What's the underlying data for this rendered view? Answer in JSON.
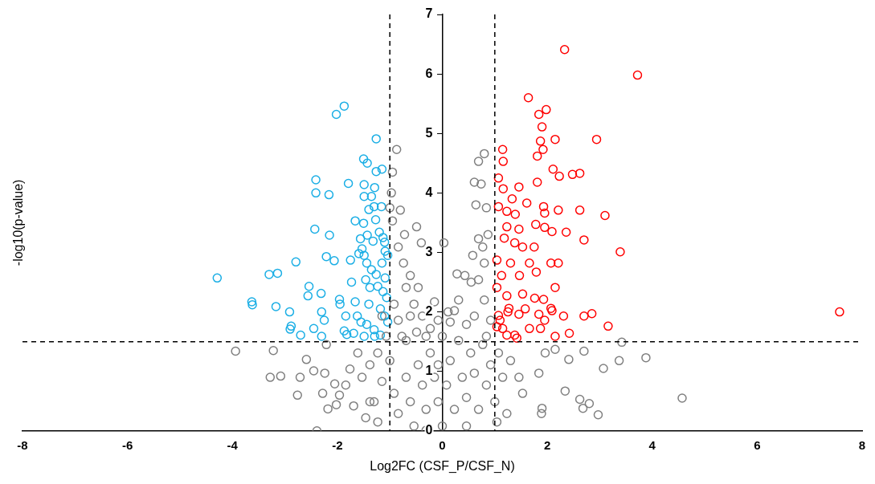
{
  "chart_data": {
    "type": "scatter",
    "xlabel": "Log2FC (CSF_P/CSF_N)",
    "ylabel": "-log10(p-value)",
    "xlim": [
      -8,
      8
    ],
    "ylim": [
      0,
      7
    ],
    "xticks": [
      -8,
      -6,
      -4,
      -2,
      0,
      2,
      4,
      6,
      8
    ],
    "yticks": [
      0,
      1,
      2,
      3,
      4,
      5,
      6,
      7
    ],
    "marker": "circle",
    "legend": false,
    "ref_lines": [
      {
        "axis": "x",
        "value": -1,
        "line_style": "dashed",
        "color": "#000000"
      },
      {
        "axis": "x",
        "value": 1,
        "line_style": "dashed",
        "color": "#000000"
      },
      {
        "axis": "y",
        "value": 1.5,
        "line_style": "dashed",
        "color": "#000000"
      }
    ],
    "series": [
      {
        "color": "#7f7f7f",
        "x": [
          -3.94,
          -3.22,
          -3.28,
          -3.08,
          -2.71,
          -2.76,
          -2.59,
          -2.39,
          -2.28,
          -2.05,
          -2.18,
          -1.96,
          -2.45,
          -2.24,
          -2.21,
          -2.02,
          4.57,
          3.88,
          3.42,
          3.37,
          3.07,
          2.7,
          2.97,
          2.8,
          2.62,
          2.68,
          2.34,
          1.9,
          1.89,
          2.41,
          1.96,
          2.15,
          1.84,
          1.53,
          1.46,
          1.23,
          1.3,
          -0.87,
          -0.95,
          -0.97,
          -1.0,
          -0.95,
          -0.49,
          -0.4,
          0.03,
          0.8,
          0.69,
          0.61,
          0.74,
          0.64,
          0.84,
          0.87,
          0.69,
          0.58,
          0.8,
          0.43,
          0.55,
          0.28,
          0.31,
          0.23,
          -0.15,
          0.15,
          0.46,
          0.61,
          -0.74,
          -0.61,
          -0.84,
          -0.69,
          -0.54,
          -0.38,
          -0.23,
          -0.84,
          -0.69,
          -1.23,
          -1.38,
          -1.53,
          -1.61,
          -1.76,
          -1.84,
          -1.69,
          -1.46,
          -1.3,
          -1.15,
          -1.0,
          -0.92,
          -0.84,
          -0.69,
          -0.61,
          -0.54,
          -0.46,
          -0.38,
          -0.31,
          -0.23,
          -0.15,
          -0.08,
          0,
          0.08,
          0.15,
          0.23,
          0.31,
          0.38,
          0.46,
          0.54,
          0.61,
          0.69,
          0.77,
          0.84,
          0.92,
          1.0,
          1.07,
          1.15,
          1.04,
          0.46,
          -0.31,
          -0.77,
          -0.92,
          -0.46,
          -0.61,
          -0.31,
          -0.08,
          -1.07,
          -1.15,
          0.8,
          0.92,
          0.84,
          -1.38,
          -1.23,
          -0.08,
          0,
          0.11,
          -0.49,
          0.69,
          0.77,
          -0.72,
          -0.8
        ],
        "values": [
          1.34,
          1.35,
          0.9,
          0.92,
          0.9,
          0.6,
          1.2,
          0.0,
          0.63,
          0.79,
          0.37,
          0.6,
          1.01,
          0.97,
          1.45,
          0.44,
          0.55,
          1.23,
          1.49,
          1.18,
          1.05,
          1.34,
          0.27,
          0.46,
          0.53,
          0.38,
          0.67,
          0.38,
          0.29,
          1.2,
          1.31,
          1.37,
          0.97,
          0.63,
          0.9,
          0.29,
          1.18,
          4.73,
          4.35,
          4.0,
          3.75,
          3.53,
          3.43,
          3.16,
          3.16,
          4.66,
          4.53,
          4.18,
          4.15,
          3.8,
          3.75,
          3.3,
          3.23,
          2.95,
          2.82,
          2.61,
          2.5,
          2.64,
          2.2,
          2.02,
          2.17,
          1.83,
          1.79,
          1.93,
          2.82,
          2.61,
          3.09,
          2.41,
          2.13,
          1.93,
          1.72,
          1.86,
          1.52,
          1.31,
          1.11,
          0.9,
          1.31,
          1.04,
          0.77,
          0.42,
          0.22,
          0.49,
          0.83,
          1.18,
          0.63,
          0.29,
          0.9,
          0.49,
          0.08,
          1.11,
          0.77,
          0.36,
          1.31,
          0.9,
          0.49,
          0.08,
          0.77,
          1.18,
          0.36,
          1.52,
          0.9,
          0.56,
          1.31,
          0.97,
          0.36,
          1.45,
          0.77,
          1.11,
          0.49,
          1.31,
          0.9,
          0.15,
          0.08,
          0.01,
          1.59,
          2.13,
          2.41,
          1.93,
          1.59,
          1.11,
          1.59,
          1.93,
          2.2,
          1.86,
          1.59,
          0.49,
          0.15,
          1.86,
          1.59,
          2.0,
          1.66,
          2.54,
          3.09,
          3.3,
          3.71
        ]
      },
      {
        "color": "#1aaee5",
        "x": [
          -4.29,
          -3.3,
          -3.14,
          -3.63,
          -3.62,
          -3.17,
          -2.79,
          -2.91,
          -2.88,
          -2.9,
          -2.7,
          -2.54,
          -2.56,
          -2.41,
          -2.41,
          -2.16,
          -2.43,
          -2.15,
          -2.21,
          -2.06,
          -2.02,
          -1.87,
          -2.31,
          -2.3,
          -2.45,
          -2.3,
          -2.25,
          -1.79,
          -1.75,
          -1.73,
          -1.96,
          -1.95,
          -1.84,
          -1.87,
          -1.82,
          -1.66,
          -1.66,
          -1.59,
          -1.53,
          -1.5,
          -1.56,
          -1.49,
          -1.44,
          -1.49,
          -1.35,
          -1.3,
          -1.4,
          -1.27,
          -1.49,
          -1.29,
          -1.5,
          -1.43,
          -1.26,
          -1.15,
          -1.26,
          -1.16,
          -1.2,
          -1.13,
          -1.1,
          -1.09,
          -1.04,
          -1.43,
          -1.32,
          -1.35,
          -1.26,
          -1.46,
          -1.23,
          -1.13,
          -1.06,
          -1.4,
          -1.18,
          -1.1,
          -1.04,
          -1.62,
          -1.55,
          -1.44,
          -1.3,
          -1.69,
          -1.18,
          -1.29,
          -1.49,
          -1.09,
          -1.15,
          -1.38
        ],
        "values": [
          2.57,
          2.63,
          2.65,
          2.17,
          2.12,
          2.09,
          2.84,
          2.0,
          1.76,
          1.71,
          1.61,
          2.43,
          2.27,
          4.22,
          4.0,
          3.97,
          3.39,
          3.29,
          2.93,
          2.86,
          5.32,
          5.46,
          2.31,
          2.0,
          1.72,
          1.59,
          1.86,
          4.16,
          2.87,
          2.5,
          2.21,
          2.13,
          1.93,
          1.68,
          1.62,
          2.17,
          3.53,
          2.98,
          3.06,
          3.49,
          3.23,
          2.95,
          2.82,
          3.94,
          3.94,
          3.77,
          3.72,
          3.55,
          4.14,
          4.09,
          4.57,
          4.5,
          4.36,
          4.4,
          4.91,
          3.77,
          3.34,
          3.25,
          3.17,
          3.02,
          2.95,
          3.29,
          3.19,
          2.71,
          2.63,
          2.54,
          2.43,
          2.34,
          2.24,
          2.13,
          2.05,
          1.93,
          1.83,
          1.93,
          1.83,
          1.79,
          1.7,
          1.64,
          1.61,
          1.59,
          1.59,
          2.57,
          2.82,
          2.41
        ]
      },
      {
        "color": "#ff0000",
        "x": [
          2.33,
          3.72,
          1.64,
          1.98,
          1.84,
          1.9,
          1.87,
          1.92,
          2.15,
          2.94,
          1.15,
          1.16,
          1.81,
          2.11,
          2.23,
          2.48,
          2.62,
          1.81,
          1.07,
          1.16,
          1.33,
          1.46,
          1.39,
          1.61,
          1.07,
          1.23,
          1.93,
          1.95,
          2.21,
          2.62,
          3.1,
          1.23,
          1.46,
          1.78,
          1.95,
          2.09,
          2.36,
          2.7,
          1.18,
          1.38,
          1.53,
          1.75,
          3.39,
          1.04,
          1.3,
          1.66,
          2.07,
          2.21,
          1.13,
          1.47,
          1.79,
          2.15,
          1.04,
          1.23,
          1.53,
          1.76,
          1.27,
          1.58,
          1.93,
          2.07,
          1.07,
          1.25,
          1.46,
          1.95,
          2.09,
          2.31,
          2.7,
          2.85,
          3.16,
          1.1,
          1.15,
          1.23,
          1.38,
          1.66,
          1.87,
          2.15,
          2.42,
          1.42,
          1.04,
          7.57,
          1.84
        ],
        "values": [
          6.41,
          5.98,
          5.6,
          5.4,
          5.32,
          5.11,
          4.87,
          4.73,
          4.9,
          4.9,
          4.73,
          4.53,
          4.62,
          4.4,
          4.28,
          4.31,
          4.33,
          4.18,
          4.25,
          4.07,
          3.9,
          4.1,
          3.64,
          3.83,
          3.77,
          3.69,
          3.77,
          3.66,
          3.71,
          3.71,
          3.62,
          3.43,
          3.39,
          3.47,
          3.42,
          3.35,
          3.34,
          3.21,
          3.24,
          3.16,
          3.09,
          3.09,
          3.01,
          2.87,
          2.82,
          2.82,
          2.82,
          2.82,
          2.61,
          2.61,
          2.67,
          2.41,
          2.41,
          2.27,
          2.3,
          2.23,
          2.06,
          2.05,
          2.21,
          2.06,
          1.94,
          2.0,
          1.96,
          1.86,
          2.02,
          1.93,
          1.93,
          1.97,
          1.76,
          1.86,
          1.72,
          1.61,
          1.61,
          1.72,
          1.72,
          1.59,
          1.64,
          1.56,
          1.75,
          2.0,
          1.96
        ]
      }
    ]
  }
}
